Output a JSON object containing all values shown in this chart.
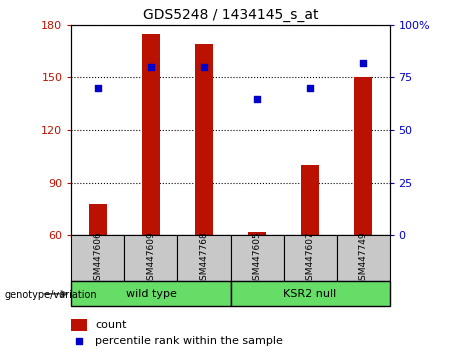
{
  "title": "GDS5248 / 1434145_s_at",
  "samples": [
    "GSM447606",
    "GSM447609",
    "GSM447768",
    "GSM447605",
    "GSM447607",
    "GSM447749"
  ],
  "counts": [
    78,
    175,
    169,
    62,
    100,
    150
  ],
  "percentiles": [
    70,
    80,
    80,
    65,
    70,
    82
  ],
  "ylim_left": [
    60,
    180
  ],
  "ylim_right": [
    0,
    100
  ],
  "yticks_left": [
    60,
    90,
    120,
    150,
    180
  ],
  "yticks_right": [
    0,
    25,
    50,
    75,
    100
  ],
  "ytick_labels_right": [
    "0",
    "25",
    "50",
    "75",
    "100%"
  ],
  "bar_color": "#bb1100",
  "dot_color": "#0000cc",
  "wild_type_label": "wild type",
  "ksr2_null_label": "KSR2 null",
  "genotype_label": "genotype/variation",
  "legend_count": "count",
  "legend_percentile": "percentile rank within the sample",
  "bar_width": 0.35,
  "header_bg": "#c8c8c8",
  "geno_bg": "#66dd66",
  "n_wild": 3,
  "n_ksr2": 3
}
